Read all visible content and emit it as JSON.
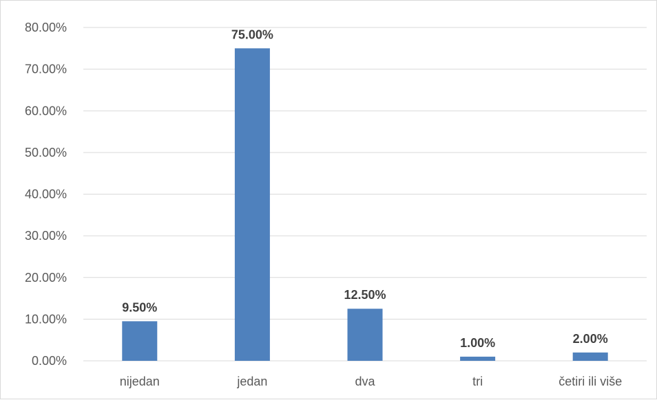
{
  "chart_data": {
    "type": "bar",
    "title": "",
    "xlabel": "",
    "ylabel": "",
    "categories": [
      "nijedan",
      "jedan",
      "dva",
      "tri",
      "četiri ili više"
    ],
    "values": [
      9.5,
      75.0,
      12.5,
      1.0,
      2.0
    ],
    "data_labels": [
      "9.50%",
      "75.00%",
      "12.50%",
      "1.00%",
      "2.00%"
    ],
    "ylim": [
      0,
      80
    ],
    "y_ticks": [
      0,
      10,
      20,
      30,
      40,
      50,
      60,
      70,
      80
    ],
    "y_tick_labels": [
      "0.00%",
      "10.00%",
      "20.00%",
      "30.00%",
      "40.00%",
      "50.00%",
      "60.00%",
      "70.00%",
      "80.00%"
    ],
    "grid": true,
    "legend": "none",
    "bar_color": "#4f81bd",
    "grid_color": "#d9d9d9"
  }
}
